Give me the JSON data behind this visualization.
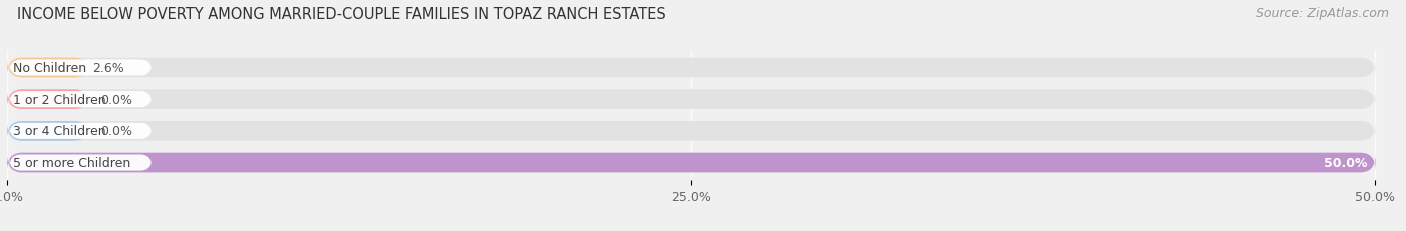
{
  "title": "INCOME BELOW POVERTY AMONG MARRIED-COUPLE FAMILIES IN TOPAZ RANCH ESTATES",
  "source": "Source: ZipAtlas.com",
  "categories": [
    "No Children",
    "1 or 2 Children",
    "3 or 4 Children",
    "5 or more Children"
  ],
  "values": [
    2.6,
    0.0,
    0.0,
    50.0
  ],
  "bar_colors": [
    "#f5c89a",
    "#f4a4a8",
    "#a8c8e8",
    "#bf94cc"
  ],
  "max_value": 50.0,
  "xlim_max": 50.0,
  "xticks": [
    0.0,
    25.0,
    50.0
  ],
  "xtick_labels": [
    "0.0%",
    "25.0%",
    "50.0%"
  ],
  "bg_color": "#f0f0f0",
  "bar_bg_color": "#e2e2e2",
  "bar_bg_color2": "#ebebeb",
  "title_fontsize": 10.5,
  "source_fontsize": 9,
  "tick_fontsize": 9,
  "label_fontsize": 9,
  "value_fontsize": 9,
  "value_fontsize_inside": 9
}
